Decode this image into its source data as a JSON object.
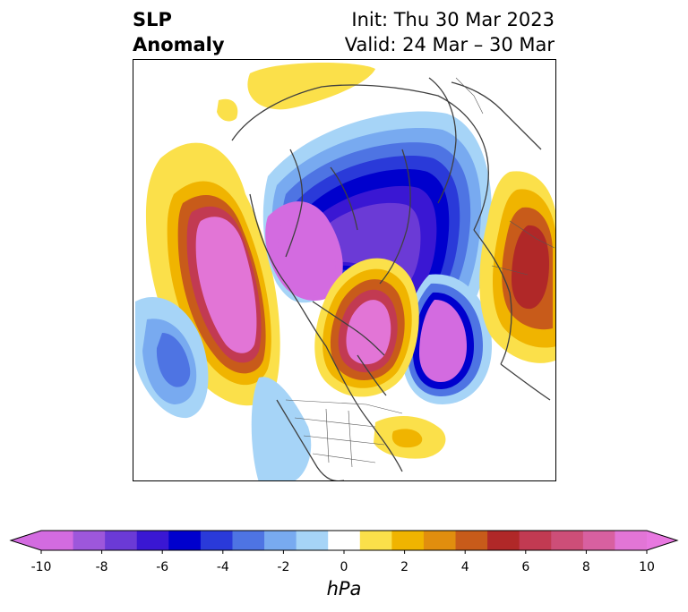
{
  "title": {
    "left_line1": "SLP",
    "left_line2": "Anomaly",
    "right_line1": "Init: Thu 30 Mar 2023",
    "right_line2": "Valid: 24 Mar – 30 Mar"
  },
  "colorbar": {
    "unit": "hPa",
    "ticks": [
      "-10",
      "-8",
      "-6",
      "-4",
      "-2",
      "0",
      "2",
      "4",
      "6",
      "8",
      "10"
    ],
    "levels": [
      -10,
      -9,
      -8,
      -7,
      -6,
      -5,
      -4,
      -3,
      -2,
      -1,
      1,
      2,
      3,
      4,
      5,
      6,
      7,
      8,
      9,
      10
    ],
    "colors": [
      "#d36be0",
      "#9d57db",
      "#6b3ad6",
      "#3a17d3",
      "#0000cd",
      "#2a3ad9",
      "#4e74e3",
      "#78aaf0",
      "#a6d4f7",
      "#ffffff",
      "#fbe04a",
      "#f0b400",
      "#e18e0e",
      "#c85b1a",
      "#b02828",
      "#c23a52",
      "#cd4e78",
      "#d860a0",
      "#e275d6"
    ],
    "under_color": "#d36be0",
    "over_color": "#e878e0"
  },
  "map": {
    "projection": "north-polar-stereographic",
    "field": "SLP anomaly",
    "colors": {
      "land_outline": "#404040",
      "strong_low": "#d36be0",
      "low_core": "#0000cd",
      "strong_high": "#e275d6",
      "high_core": "#b02828"
    }
  }
}
